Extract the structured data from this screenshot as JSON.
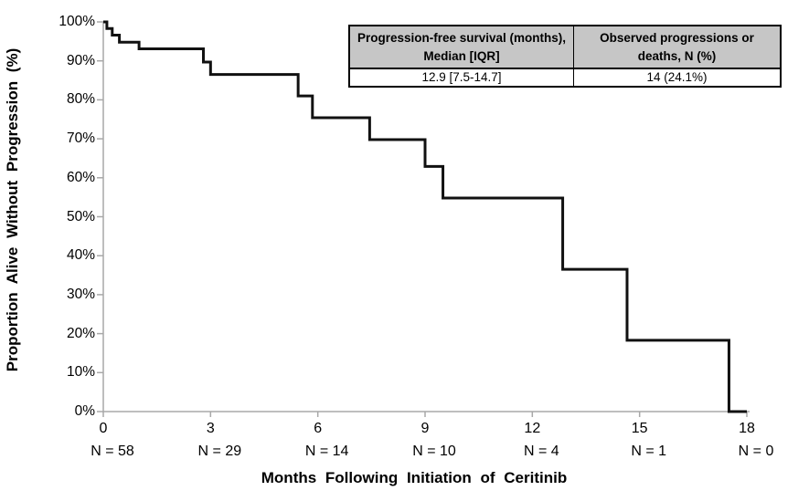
{
  "figure": {
    "y_axis_title": "Proportion Alive Without Progression (%)",
    "x_axis_title": "Months Following Initiation of Ceritinib"
  },
  "summary_table": {
    "col1_header": "Progression-free survival (months), Median [IQR]",
    "col1_value": "12.9 [7.5-14.7]",
    "col2_header": "Observed progressions or deaths, N (%)",
    "col2_value": "14 (24.1%)"
  },
  "chart_data": {
    "type": "line",
    "subtype": "kaplan_meier_step_curve",
    "title": "",
    "xlabel": "Months Following Initiation of Ceritinib",
    "ylabel": "Proportion Alive Without Progression (%)",
    "xlim": [
      0,
      18
    ],
    "ylim": [
      0,
      100
    ],
    "grid": false,
    "legend": "none",
    "axis_color": "#a8a8a8",
    "curve_color": "#111111",
    "y_ticks": [
      {
        "value": 0,
        "label": "0%"
      },
      {
        "value": 10,
        "label": "10%"
      },
      {
        "value": 20,
        "label": "20%"
      },
      {
        "value": 30,
        "label": "30%"
      },
      {
        "value": 40,
        "label": "40%"
      },
      {
        "value": 50,
        "label": "50%"
      },
      {
        "value": 60,
        "label": "60%"
      },
      {
        "value": 70,
        "label": "70%"
      },
      {
        "value": 80,
        "label": "80%"
      },
      {
        "value": 90,
        "label": "90%"
      },
      {
        "value": 100,
        "label": "100%"
      }
    ],
    "x_ticks": [
      {
        "value": 0,
        "label": "0",
        "n_at_risk": 58,
        "at_risk_label": "N = 58"
      },
      {
        "value": 3,
        "label": "3",
        "n_at_risk": 29,
        "at_risk_label": "N = 29"
      },
      {
        "value": 6,
        "label": "6",
        "n_at_risk": 14,
        "at_risk_label": "N = 14"
      },
      {
        "value": 9,
        "label": "9",
        "n_at_risk": 10,
        "at_risk_label": "N = 10"
      },
      {
        "value": 12,
        "label": "12",
        "n_at_risk": 4,
        "at_risk_label": "N = 4"
      },
      {
        "value": 15,
        "label": "15",
        "n_at_risk": 1,
        "at_risk_label": "N = 1"
      },
      {
        "value": 18,
        "label": "18",
        "n_at_risk": 0,
        "at_risk_label": "N = 0"
      }
    ],
    "series": [
      {
        "name": "Progression-free survival",
        "steps": [
          [
            0,
            100
          ],
          [
            0.1,
            98.3
          ],
          [
            0.25,
            96.6
          ],
          [
            0.45,
            94.8
          ],
          [
            1.0,
            93.1
          ],
          [
            2.8,
            89.7
          ],
          [
            3.0,
            86.5
          ],
          [
            5.45,
            81.0
          ],
          [
            5.85,
            75.4
          ],
          [
            7.45,
            69.8
          ],
          [
            9.0,
            62.9
          ],
          [
            9.5,
            54.8
          ],
          [
            12.85,
            36.5
          ],
          [
            14.65,
            18.3
          ],
          [
            17.5,
            0
          ]
        ],
        "end_x": 18
      }
    ]
  }
}
